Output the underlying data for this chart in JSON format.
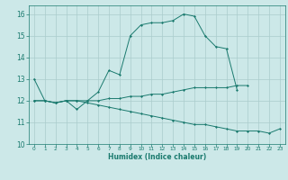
{
  "xlabel": "Humidex (Indice chaleur)",
  "x": [
    0,
    1,
    2,
    3,
    4,
    5,
    6,
    7,
    8,
    9,
    10,
    11,
    12,
    13,
    14,
    15,
    16,
    17,
    18,
    19,
    20,
    21,
    22,
    23
  ],
  "line1": [
    13,
    12,
    11.9,
    12,
    11.6,
    12,
    12.4,
    13.4,
    13.2,
    15,
    15.5,
    15.6,
    15.6,
    15.7,
    16,
    15.9,
    15,
    14.5,
    14.4,
    12.5,
    null,
    null,
    null,
    null
  ],
  "line2": [
    12,
    12,
    11.9,
    12,
    12,
    12,
    12,
    12.1,
    12.1,
    12.2,
    12.2,
    12.3,
    12.3,
    12.4,
    12.5,
    12.6,
    12.6,
    12.6,
    12.6,
    12.7,
    12.7,
    null,
    null,
    null
  ],
  "line3": [
    12,
    12,
    11.9,
    12,
    12,
    11.9,
    11.8,
    11.7,
    11.6,
    11.5,
    11.4,
    11.3,
    11.2,
    11.1,
    11.0,
    10.9,
    10.9,
    10.8,
    10.7,
    10.6,
    10.6,
    10.6,
    10.5,
    10.7
  ],
  "line_color": "#1a7a6e",
  "bg_color": "#cce8e8",
  "grid_color": "#aacccc",
  "ylim": [
    10,
    16.4
  ],
  "xlim": [
    -0.5,
    23.5
  ],
  "yticks": [
    10,
    11,
    12,
    13,
    14,
    15,
    16
  ],
  "xticks": [
    0,
    1,
    2,
    3,
    4,
    5,
    6,
    7,
    8,
    9,
    10,
    11,
    12,
    13,
    14,
    15,
    16,
    17,
    18,
    19,
    20,
    21,
    22,
    23
  ]
}
